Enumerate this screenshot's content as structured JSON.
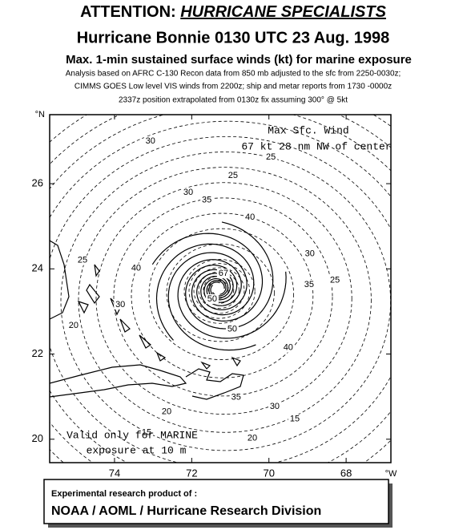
{
  "header": {
    "title_prefix": "ATTENTION:",
    "title_emph": "HURRICANE SPECIALISTS",
    "subtitle": "Hurricane Bonnie  0130 UTC 23 Aug. 1998",
    "heading": "Max. 1-min sustained surface winds (kt) for marine exposure",
    "notes": [
      "Analysis based on  AFRC C-130 Recon data from 850 mb adjusted to the sfc from  2250-0030z;",
      "CIMMS GOES Low level VIS winds from 2200z; ship and metar reports from   1730 -0000z",
      "2337z position extrapolated from 0130z fix assuming 300° @ 5kt"
    ]
  },
  "map": {
    "lonlim": [
      75.68,
      66.84
    ],
    "latlim": [
      19.45,
      27.62
    ],
    "lon_ticks": [
      74,
      72,
      70,
      68
    ],
    "lat_ticks": [
      20,
      22,
      24,
      26
    ],
    "lon_unit": "°W",
    "lat_unit": "°N",
    "annotation": [
      "Max Sfc. Wind",
      "67 kt  28 nm NW of center"
    ],
    "validity": [
      "Valid only for MARINE",
      "exposure at 10 m"
    ],
    "contour_labels": [
      {
        "value": 30,
        "lon": 73.07,
        "lat": 27.0
      },
      {
        "value": 25,
        "lon": 69.95,
        "lat": 26.62
      },
      {
        "value": 25,
        "lon": 70.93,
        "lat": 26.19
      },
      {
        "value": 30,
        "lon": 72.09,
        "lat": 25.79
      },
      {
        "value": 35,
        "lon": 71.61,
        "lat": 25.61
      },
      {
        "value": 40,
        "lon": 70.49,
        "lat": 25.21
      },
      {
        "value": 25,
        "lon": 74.83,
        "lat": 24.2
      },
      {
        "value": 40,
        "lon": 73.44,
        "lat": 24.01
      },
      {
        "value": 30,
        "lon": 68.94,
        "lat": 24.35
      },
      {
        "value": 35,
        "lon": 68.96,
        "lat": 23.63
      },
      {
        "value": 25,
        "lon": 68.29,
        "lat": 23.73
      },
      {
        "value": 67,
        "lon": 71.18,
        "lat": 23.89
      },
      {
        "value": 50,
        "lon": 71.47,
        "lat": 23.29
      },
      {
        "value": 50,
        "lon": 70.95,
        "lat": 22.58
      },
      {
        "value": 40,
        "lon": 69.5,
        "lat": 22.15
      },
      {
        "value": 35,
        "lon": 70.85,
        "lat": 20.98
      },
      {
        "value": 30,
        "lon": 69.85,
        "lat": 20.77
      },
      {
        "value": 15,
        "lon": 69.33,
        "lat": 20.47
      },
      {
        "value": 20,
        "lon": 72.65,
        "lat": 20.64
      },
      {
        "value": 15,
        "lon": 73.17,
        "lat": 20.15
      },
      {
        "value": 20,
        "lon": 75.06,
        "lat": 22.67
      },
      {
        "value": 30,
        "lon": 73.85,
        "lat": 23.16
      },
      {
        "value": 20,
        "lon": 70.43,
        "lat": 20.02
      }
    ]
  },
  "footer": {
    "line1": "Experimental research product of :",
    "line2": "NOAA / AOML / Hurricane Research Division"
  }
}
